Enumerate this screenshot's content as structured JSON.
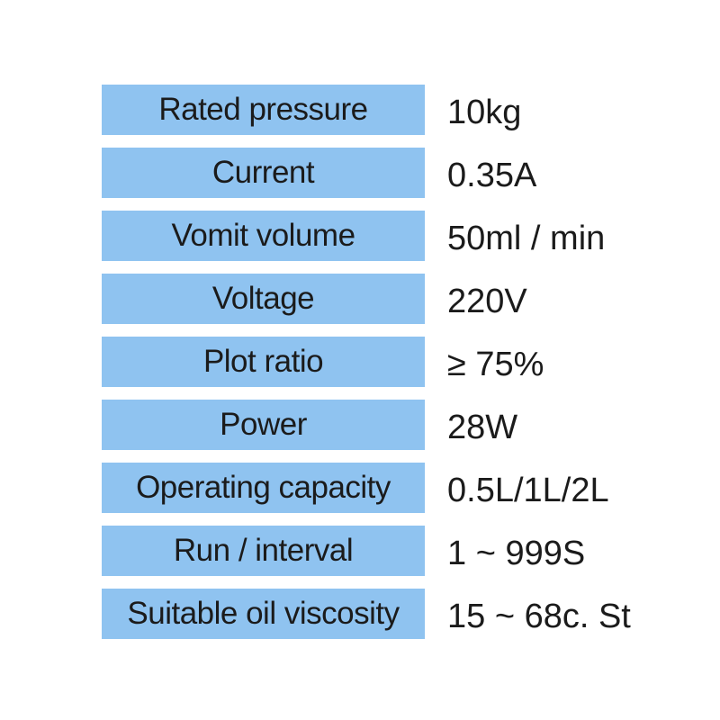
{
  "page": {
    "background_color": "#ffffff",
    "label_bg_color": "#8fc3f0",
    "text_color": "#1b1b1b"
  },
  "table": {
    "rows": [
      {
        "label": "Rated pressure",
        "value": "10kg"
      },
      {
        "label": "Current",
        "value": "0.35A"
      },
      {
        "label": "Vomit volume",
        "value": "50ml / min"
      },
      {
        "label": "Voltage",
        "value": "220V"
      },
      {
        "label": "Plot ratio",
        "value": "≥ 75%"
      },
      {
        "label": "Power",
        "value": "28W"
      },
      {
        "label": "Operating capacity",
        "value": "0.5L/1L/2L"
      },
      {
        "label": "Run / interval",
        "value": "1 ~ 999S"
      },
      {
        "label": "Suitable oil viscosity",
        "value": "15 ~ 68c. St"
      }
    ]
  }
}
